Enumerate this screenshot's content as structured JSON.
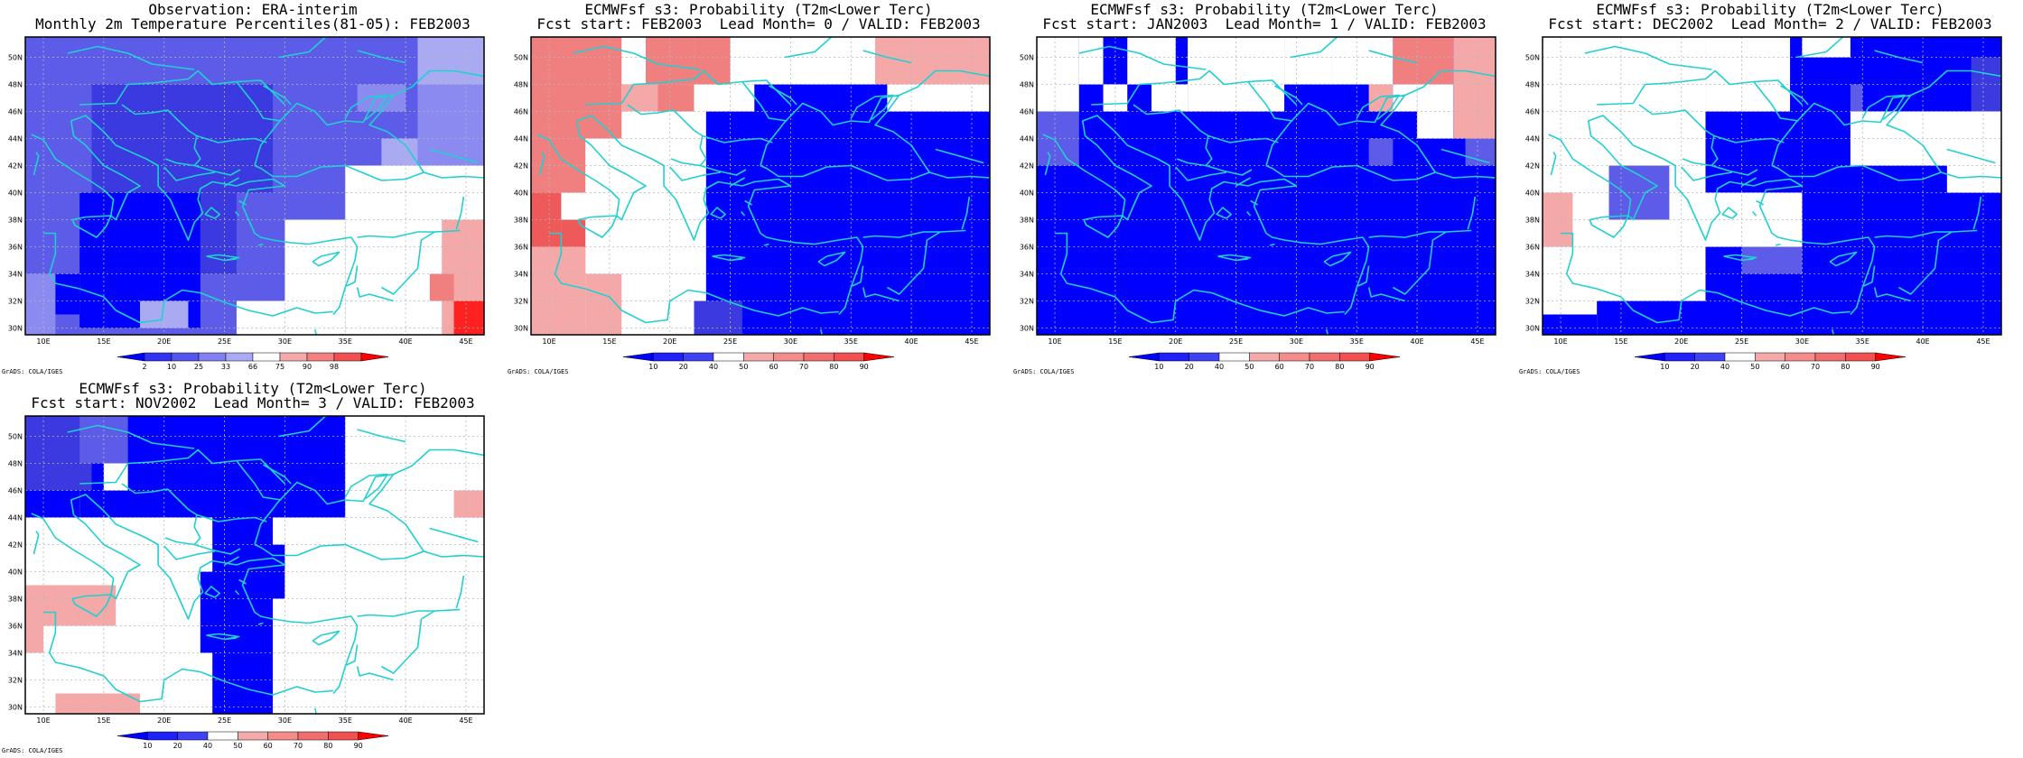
{
  "figure": {
    "panels": [
      {
        "id": "obs",
        "title_line1": "Observation: ERA-interim",
        "title_line2": "Monthly 2m Temperature Percentiles(81-05): FEB2003",
        "colorbar_type": "percentile",
        "credit": "GrADS: COLA/IGES"
      },
      {
        "id": "lead0",
        "title_line1": "ECMWFsf s3: Probability (T2m<Lower Terc)",
        "title_line2": "Fcst start: FEB2003  Lead Month= 0 / VALID: FEB2003",
        "colorbar_type": "probability",
        "credit": "GrADS: COLA/IGES"
      },
      {
        "id": "lead1",
        "title_line1": "ECMWFsf s3: Probability (T2m<Lower Terc)",
        "title_line2": "Fcst start: JAN2003  Lead Month= 1 / VALID: FEB2003",
        "colorbar_type": "probability",
        "credit": "GrADS: COLA/IGES"
      },
      {
        "id": "lead2",
        "title_line1": "ECMWFsf s3: Probability (T2m<Lower Terc)",
        "title_line2": "Fcst start: DEC2002  Lead Month= 2 / VALID: FEB2003",
        "colorbar_type": "probability",
        "credit": "GrADS: COLA/IGES"
      },
      {
        "id": "lead3",
        "title_line1": "ECMWFsf s3: Probability (T2m<Lower Terc)",
        "title_line2": "Fcst start: NOV2002  Lead Month= 3 / VALID: FEB2003",
        "colorbar_type": "probability",
        "credit": "GrADS: COLA/IGES"
      }
    ],
    "map_axes": {
      "lon_ticks": [
        "10E",
        "15E",
        "20E",
        "25E",
        "30E",
        "35E",
        "40E",
        "45E"
      ],
      "lat_ticks": [
        "50N",
        "48N",
        "46N",
        "44N",
        "42N",
        "40N",
        "38N",
        "36N",
        "34N",
        "32N",
        "30N"
      ],
      "lon_range": [
        8.5,
        46.5
      ],
      "lat_range": [
        29.5,
        51.5
      ],
      "coastline_color": "#20d0d0"
    },
    "colorbars": {
      "percentile": {
        "labels": [
          "2",
          "10",
          "25",
          "33",
          "66",
          "75",
          "90",
          "98"
        ],
        "colors": [
          "#0000ff",
          "#3232f0",
          "#5555ee",
          "#8080f2",
          "#aaaaf4",
          "#ffffff",
          "#f4aaaa",
          "#f48080",
          "#f05050",
          "#ff0000"
        ]
      },
      "probability": {
        "labels": [
          "10",
          "20",
          "40",
          "50",
          "60",
          "70",
          "80",
          "90"
        ],
        "colors": [
          "#0000ff",
          "#2020f8",
          "#4040f4",
          "#ffffff",
          "#f4aaaa",
          "#f48c8c",
          "#f06e6e",
          "#f05050",
          "#ff0000"
        ]
      }
    }
  }
}
